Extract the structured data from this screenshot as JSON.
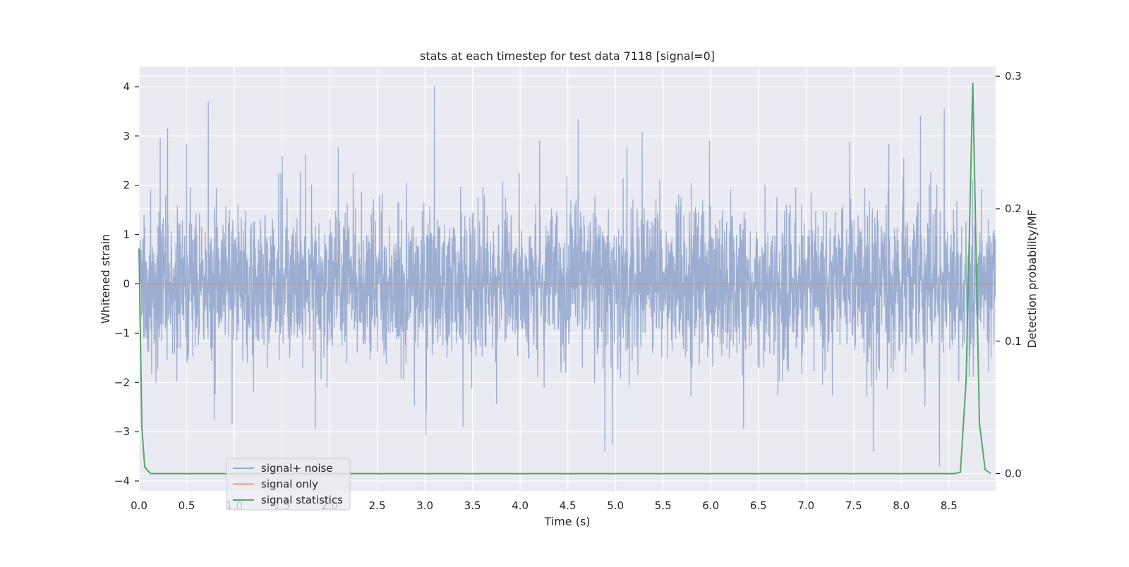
{
  "chart_data": {
    "type": "line",
    "title": "stats at each timestep for test data 7118 [signal=0]",
    "xlabel": "Time (s)",
    "ylabel": "Whitened strain",
    "y2label": "Detection probability/MF",
    "xlim": [
      0.0,
      8.99
    ],
    "ylim": [
      -4.2,
      4.4
    ],
    "y2lim": [
      -0.013,
      0.307
    ],
    "xticks": [
      "0.0",
      "0.5",
      "1.0",
      "1.5",
      "2.0",
      "2.5",
      "3.0",
      "3.5",
      "4.0",
      "4.5",
      "5.0",
      "5.5",
      "6.0",
      "6.5",
      "7.0",
      "7.5",
      "8.0",
      "8.5"
    ],
    "yticks": [
      "4",
      "3",
      "2",
      "1",
      "0",
      "−1",
      "−2",
      "−3",
      "−4"
    ],
    "y2ticks": [
      "0.3",
      "0.2",
      "0.1",
      "0.0"
    ],
    "grid": true,
    "legend_position": "lower left",
    "colors": {
      "background": "#eaeaf2",
      "grid": "#ffffff",
      "noise": "#4c72b0",
      "signal": "#dd8452",
      "stats": "#55a868"
    },
    "series": [
      {
        "name": "signal+ noise",
        "axis": "left",
        "description_range": [
          -3.7,
          4.0
        ],
        "notable_peaks": [
          {
            "x": 0.3,
            "y": 3.15
          },
          {
            "x": 3.1,
            "y": 4.02
          },
          {
            "x": 5.28,
            "y": 3.08
          },
          {
            "x": 8.45,
            "y": 3.55
          },
          {
            "x": 1.85,
            "y": -2.95
          },
          {
            "x": 3.4,
            "y": -2.9
          },
          {
            "x": 8.4,
            "y": -3.7
          }
        ]
      },
      {
        "name": "signal only",
        "axis": "left",
        "x": [
          0.0,
          8.99
        ],
        "y": [
          0.0,
          0.0
        ]
      },
      {
        "name": "signal statistics",
        "axis": "right",
        "x": [
          0.0,
          0.03,
          0.06,
          0.12,
          8.55,
          8.62,
          8.68,
          8.75,
          8.82,
          8.88,
          8.94
        ],
        "y": [
          0.17,
          0.035,
          0.005,
          0.0,
          0.0,
          0.001,
          0.07,
          0.295,
          0.038,
          0.003,
          0.0
        ]
      }
    ]
  }
}
